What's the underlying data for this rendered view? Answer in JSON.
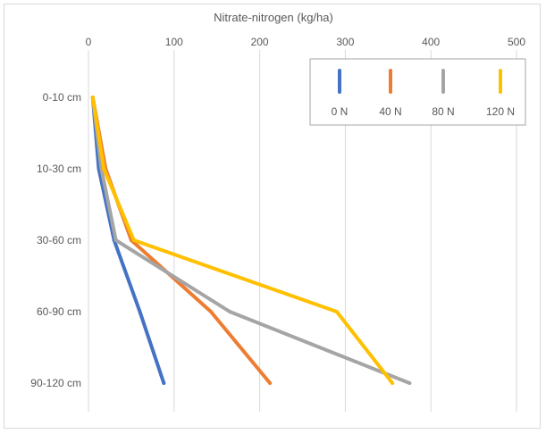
{
  "chart_data": {
    "type": "line",
    "orientation": "vertical-profile",
    "xlabel": "Nitrate-nitrogen  (kg/ha)",
    "x_axis_position": "top",
    "xlim": [
      0,
      500
    ],
    "x_ticks": [
      "0",
      "100",
      "200",
      "300",
      "400",
      "500"
    ],
    "categories": [
      "0-10 cm",
      "10-30 cm",
      "30-60 cm",
      "60-90 cm",
      "90-120 cm"
    ],
    "grid": "vertical",
    "legend_position": "top-right",
    "series": [
      {
        "name": "0 N",
        "color": "#4472C4",
        "values": [
          5,
          12,
          30,
          60,
          88
        ]
      },
      {
        "name": "40 N",
        "color": "#ED7D31",
        "values": [
          5,
          20,
          50,
          143,
          212
        ]
      },
      {
        "name": "80 N",
        "color": "#A5A5A5",
        "values": [
          5,
          15,
          32,
          165,
          375
        ]
      },
      {
        "name": "120 N",
        "color": "#FFC000",
        "values": [
          5,
          18,
          53,
          290,
          355
        ]
      }
    ]
  }
}
